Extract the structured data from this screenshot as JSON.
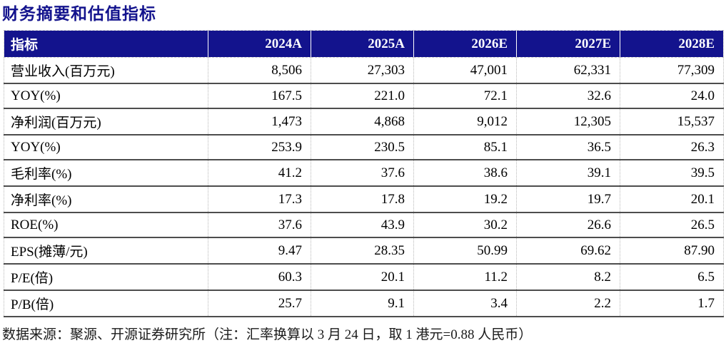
{
  "title": "财务摘要和估值指标",
  "table": {
    "header": [
      "指标",
      "2024A",
      "2025A",
      "2026E",
      "2027E",
      "2028E"
    ],
    "rows": [
      {
        "label": "营业收入(百万元)",
        "values": [
          "8,506",
          "27,303",
          "47,001",
          "62,331",
          "77,309"
        ]
      },
      {
        "label": "YOY(%)",
        "values": [
          "167.5",
          "221.0",
          "72.1",
          "32.6",
          "24.0"
        ]
      },
      {
        "label": "净利润(百万元)",
        "values": [
          "1,473",
          "4,868",
          "9,012",
          "12,305",
          "15,537"
        ]
      },
      {
        "label": "YOY(%)",
        "values": [
          "253.9",
          "230.5",
          "85.1",
          "36.5",
          "26.3"
        ]
      },
      {
        "label": "毛利率(%)",
        "values": [
          "41.2",
          "37.6",
          "38.6",
          "39.1",
          "39.5"
        ]
      },
      {
        "label": "净利率(%)",
        "values": [
          "17.3",
          "17.8",
          "19.2",
          "19.7",
          "20.1"
        ]
      },
      {
        "label": "ROE(%)",
        "values": [
          "37.6",
          "43.9",
          "30.2",
          "26.6",
          "26.5"
        ]
      },
      {
        "label": "EPS(摊薄/元)",
        "values": [
          "9.47",
          "28.35",
          "50.99",
          "69.62",
          "87.90"
        ]
      },
      {
        "label": "P/E(倍)",
        "values": [
          "60.3",
          "20.1",
          "11.2",
          "8.2",
          "6.5"
        ]
      },
      {
        "label": "P/B(倍)",
        "values": [
          "25.7",
          "9.1",
          "3.4",
          "2.2",
          "1.7"
        ]
      }
    ]
  },
  "footer": {
    "source_note": "数据来源：聚源、开源证券研究所（注：汇率换算以 3 月 24 日，取 1 港元=0.88 人民币）"
  },
  "colors": {
    "accent_navy": "#13138D",
    "header_text": "#FFFFFF",
    "body_text": "#000000",
    "row_divider": "#4D4D4D",
    "column_divider": "#B8B8B8",
    "footer_text": "#1A1A1A"
  }
}
